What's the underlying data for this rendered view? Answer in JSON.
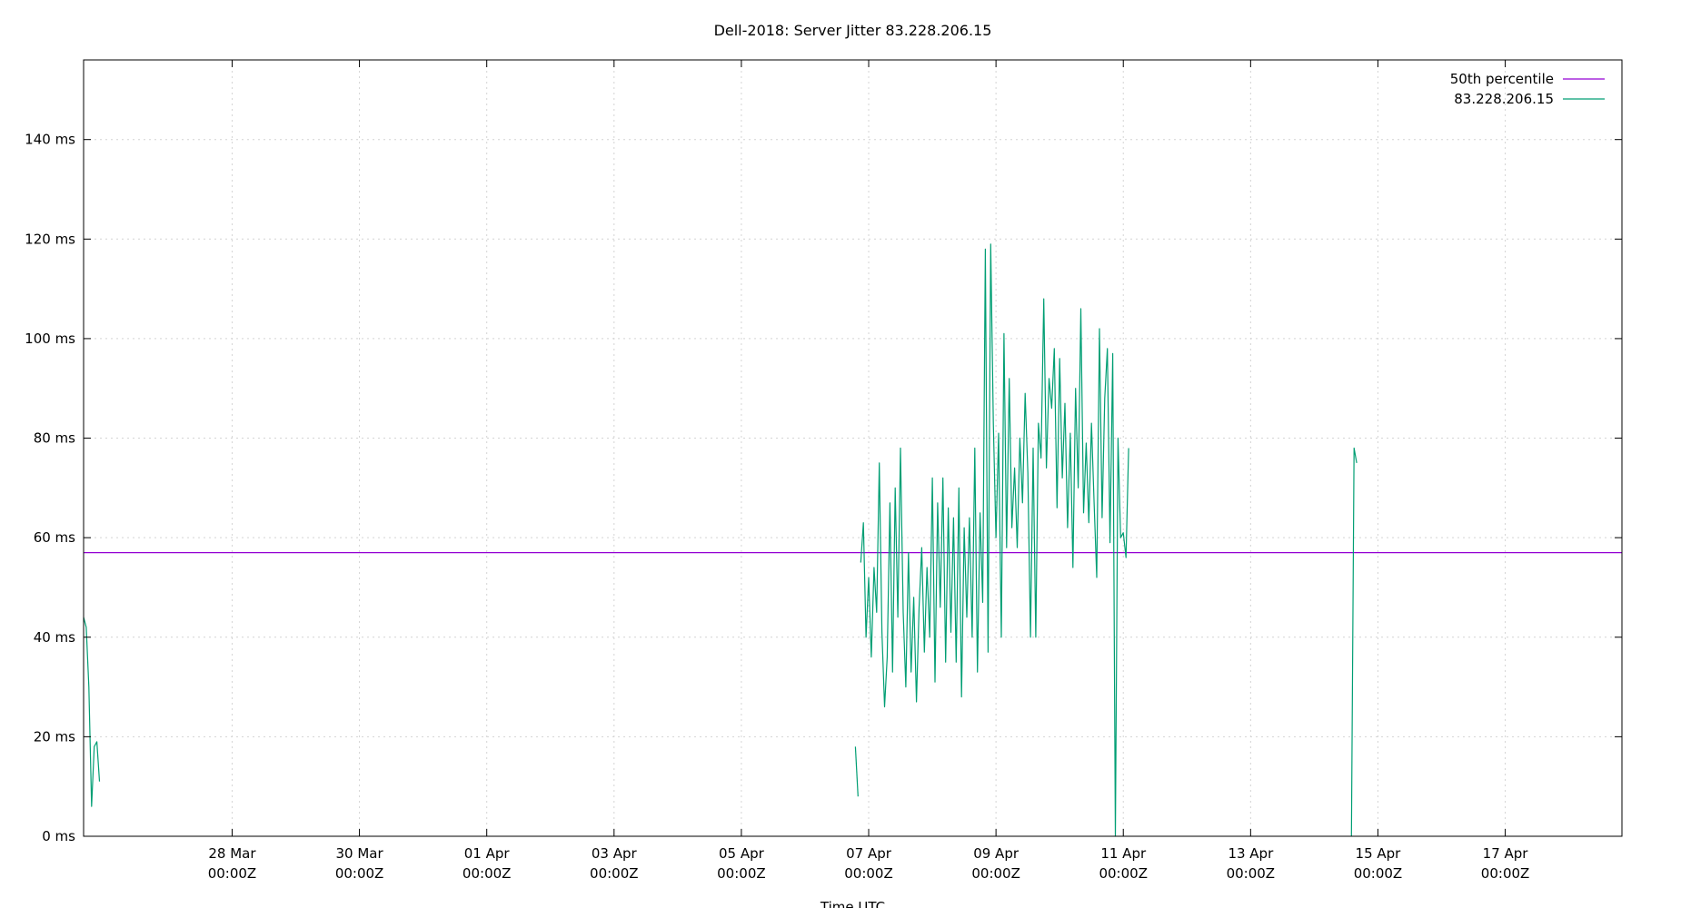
{
  "chart_data": {
    "type": "line",
    "title": "Dell-2018: Server Jitter 83.228.206.15",
    "xlabel": "Time UTC",
    "ylabel": "",
    "ylim": [
      0,
      156
    ],
    "xlim": [
      "2024-03-25T16:00Z",
      "2024-04-18T20:00Z"
    ],
    "y_ticks": [
      0,
      20,
      40,
      60,
      80,
      100,
      120,
      140
    ],
    "y_tick_labels": [
      "0 ms",
      "20 ms",
      "40 ms",
      "60 ms",
      "80 ms",
      "100 ms",
      "120 ms",
      "140 ms"
    ],
    "x_ticks": [
      {
        "t": "2024-03-28T00:00Z",
        "date": "28 Mar",
        "time": "00:00Z"
      },
      {
        "t": "2024-03-30T00:00Z",
        "date": "30 Mar",
        "time": "00:00Z"
      },
      {
        "t": "2024-04-01T00:00Z",
        "date": "01 Apr",
        "time": "00:00Z"
      },
      {
        "t": "2024-04-03T00:00Z",
        "date": "03 Apr",
        "time": "00:00Z"
      },
      {
        "t": "2024-04-05T00:00Z",
        "date": "05 Apr",
        "time": "00:00Z"
      },
      {
        "t": "2024-04-07T00:00Z",
        "date": "07 Apr",
        "time": "00:00Z"
      },
      {
        "t": "2024-04-09T00:00Z",
        "date": "09 Apr",
        "time": "00:00Z"
      },
      {
        "t": "2024-04-11T00:00Z",
        "date": "11 Apr",
        "time": "00:00Z"
      },
      {
        "t": "2024-04-13T00:00Z",
        "date": "13 Apr",
        "time": "00:00Z"
      },
      {
        "t": "2024-04-15T00:00Z",
        "date": "15 Apr",
        "time": "00:00Z"
      },
      {
        "t": "2024-04-17T00:00Z",
        "date": "17 Apr",
        "time": "00:00Z"
      }
    ],
    "grid": true,
    "legend_position": "top-right",
    "series": [
      {
        "name": "50th percentile",
        "color": "#9400d3",
        "kind": "hline",
        "value": 57
      },
      {
        "name": "83.228.206.15",
        "color": "#009e73",
        "kind": "line",
        "segments": [
          [
            [
              "2024-03-25T16:00Z",
              44
            ],
            [
              "2024-03-25T17:00Z",
              42
            ],
            [
              "2024-03-25T18:00Z",
              30
            ],
            [
              "2024-03-25T19:00Z",
              6
            ],
            [
              "2024-03-25T20:00Z",
              18
            ],
            [
              "2024-03-25T21:00Z",
              19
            ],
            [
              "2024-03-25T22:00Z",
              11
            ]
          ],
          [
            [
              "2024-04-06T19:00Z",
              18
            ],
            [
              "2024-04-06T20:00Z",
              8
            ]
          ],
          [
            [
              "2024-04-06T21:00Z",
              55
            ],
            [
              "2024-04-06T22:00Z",
              63
            ],
            [
              "2024-04-06T23:00Z",
              40
            ],
            [
              "2024-04-07T00:00Z",
              52
            ],
            [
              "2024-04-07T01:00Z",
              36
            ],
            [
              "2024-04-07T02:00Z",
              54
            ],
            [
              "2024-04-07T03:00Z",
              45
            ],
            [
              "2024-04-07T04:00Z",
              75
            ],
            [
              "2024-04-07T05:00Z",
              41
            ],
            [
              "2024-04-07T06:00Z",
              26
            ],
            [
              "2024-04-07T07:00Z",
              36
            ],
            [
              "2024-04-07T08:00Z",
              67
            ],
            [
              "2024-04-07T09:00Z",
              33
            ],
            [
              "2024-04-07T10:00Z",
              70
            ],
            [
              "2024-04-07T11:00Z",
              44
            ],
            [
              "2024-04-07T12:00Z",
              78
            ],
            [
              "2024-04-07T13:00Z",
              45
            ],
            [
              "2024-04-07T14:00Z",
              30
            ],
            [
              "2024-04-07T15:00Z",
              57
            ],
            [
              "2024-04-07T16:00Z",
              33
            ],
            [
              "2024-04-07T17:00Z",
              48
            ],
            [
              "2024-04-07T18:00Z",
              27
            ],
            [
              "2024-04-07T19:00Z",
              46
            ],
            [
              "2024-04-07T20:00Z",
              58
            ],
            [
              "2024-04-07T21:00Z",
              37
            ],
            [
              "2024-04-07T22:00Z",
              54
            ],
            [
              "2024-04-07T23:00Z",
              40
            ],
            [
              "2024-04-08T00:00Z",
              72
            ],
            [
              "2024-04-08T01:00Z",
              31
            ],
            [
              "2024-04-08T02:00Z",
              67
            ],
            [
              "2024-04-08T03:00Z",
              46
            ],
            [
              "2024-04-08T04:00Z",
              72
            ],
            [
              "2024-04-08T05:00Z",
              35
            ],
            [
              "2024-04-08T06:00Z",
              66
            ],
            [
              "2024-04-08T07:00Z",
              41
            ],
            [
              "2024-04-08T08:00Z",
              64
            ],
            [
              "2024-04-08T09:00Z",
              35
            ],
            [
              "2024-04-08T10:00Z",
              70
            ],
            [
              "2024-04-08T11:00Z",
              28
            ],
            [
              "2024-04-08T12:00Z",
              62
            ],
            [
              "2024-04-08T13:00Z",
              44
            ],
            [
              "2024-04-08T14:00Z",
              64
            ],
            [
              "2024-04-08T15:00Z",
              40
            ],
            [
              "2024-04-08T16:00Z",
              78
            ],
            [
              "2024-04-08T17:00Z",
              33
            ],
            [
              "2024-04-08T18:00Z",
              65
            ],
            [
              "2024-04-08T19:00Z",
              47
            ],
            [
              "2024-04-08T20:00Z",
              118
            ],
            [
              "2024-04-08T21:00Z",
              37
            ],
            [
              "2024-04-08T22:00Z",
              119
            ],
            [
              "2024-04-08T23:00Z",
              83
            ],
            [
              "2024-04-09T00:00Z",
              60
            ],
            [
              "2024-04-09T01:00Z",
              81
            ],
            [
              "2024-04-09T02:00Z",
              40
            ],
            [
              "2024-04-09T03:00Z",
              101
            ],
            [
              "2024-04-09T04:00Z",
              58
            ],
            [
              "2024-04-09T05:00Z",
              92
            ],
            [
              "2024-04-09T06:00Z",
              62
            ],
            [
              "2024-04-09T07:00Z",
              74
            ],
            [
              "2024-04-09T08:00Z",
              58
            ],
            [
              "2024-04-09T09:00Z",
              80
            ],
            [
              "2024-04-09T10:00Z",
              67
            ],
            [
              "2024-04-09T11:00Z",
              89
            ],
            [
              "2024-04-09T12:00Z",
              73
            ],
            [
              "2024-04-09T13:00Z",
              40
            ],
            [
              "2024-04-09T14:00Z",
              78
            ],
            [
              "2024-04-09T15:00Z",
              40
            ],
            [
              "2024-04-09T16:00Z",
              83
            ],
            [
              "2024-04-09T17:00Z",
              76
            ],
            [
              "2024-04-09T18:00Z",
              108
            ],
            [
              "2024-04-09T19:00Z",
              74
            ],
            [
              "2024-04-09T20:00Z",
              92
            ],
            [
              "2024-04-09T21:00Z",
              86
            ],
            [
              "2024-04-09T22:00Z",
              98
            ],
            [
              "2024-04-09T23:00Z",
              66
            ],
            [
              "2024-04-10T00:00Z",
              96
            ],
            [
              "2024-04-10T01:00Z",
              72
            ],
            [
              "2024-04-10T02:00Z",
              87
            ],
            [
              "2024-04-10T03:00Z",
              62
            ],
            [
              "2024-04-10T04:00Z",
              81
            ],
            [
              "2024-04-10T05:00Z",
              54
            ],
            [
              "2024-04-10T06:00Z",
              90
            ],
            [
              "2024-04-10T07:00Z",
              70
            ],
            [
              "2024-04-10T08:00Z",
              106
            ],
            [
              "2024-04-10T09:00Z",
              65
            ],
            [
              "2024-04-10T10:00Z",
              79
            ],
            [
              "2024-04-10T11:00Z",
              63
            ],
            [
              "2024-04-10T12:00Z",
              83
            ],
            [
              "2024-04-10T13:00Z",
              67
            ],
            [
              "2024-04-10T14:00Z",
              52
            ],
            [
              "2024-04-10T15:00Z",
              102
            ],
            [
              "2024-04-10T16:00Z",
              64
            ],
            [
              "2024-04-10T17:00Z",
              88
            ],
            [
              "2024-04-10T18:00Z",
              98
            ],
            [
              "2024-04-10T19:00Z",
              59
            ],
            [
              "2024-04-10T20:00Z",
              97
            ],
            [
              "2024-04-10T21:00Z",
              0
            ],
            [
              "2024-04-10T22:00Z",
              80
            ],
            [
              "2024-04-10T23:00Z",
              60
            ],
            [
              "2024-04-11T00:00Z",
              61
            ],
            [
              "2024-04-11T01:00Z",
              56
            ],
            [
              "2024-04-11T02:00Z",
              78
            ]
          ],
          [
            [
              "2024-04-14T14:00Z",
              0
            ],
            [
              "2024-04-14T15:00Z",
              78
            ],
            [
              "2024-04-14T16:00Z",
              75
            ]
          ]
        ]
      }
    ]
  }
}
